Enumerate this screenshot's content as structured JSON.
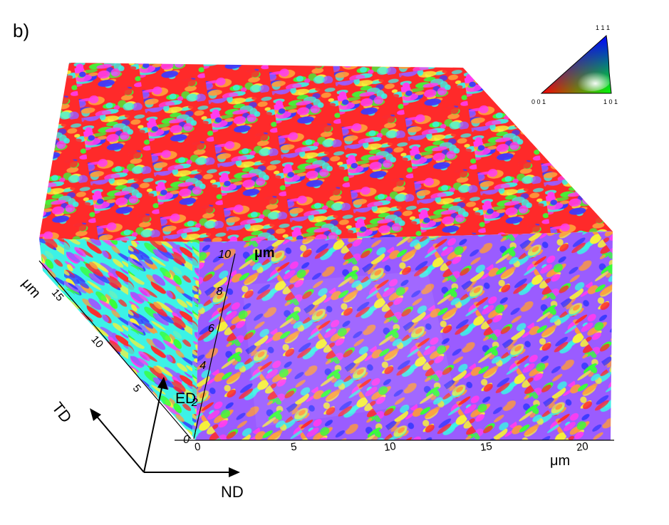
{
  "panel_label": "b)",
  "ipf_key": {
    "corner_111": "1 1 1",
    "corner_001": "0 0 1",
    "corner_101": "1 0 1"
  },
  "axes": {
    "vertical": {
      "unit": "μm",
      "ticks": [
        "0",
        "2",
        "4",
        "6",
        "8",
        "10"
      ]
    },
    "horizontal": {
      "unit": "μm",
      "ticks": [
        "0",
        "5",
        "10",
        "15",
        "20"
      ]
    },
    "depth": {
      "unit": "μm",
      "ticks": [
        "5",
        "10",
        "15"
      ]
    }
  },
  "direction_triad": {
    "td": "TD",
    "ed": "ED",
    "nd": "ND"
  },
  "colors": {
    "ipf_red": "#ff2a2a",
    "ipf_green": "#38ff38",
    "ipf_blue": "#3a3aff",
    "ipf_cyan": "#3cf2e6",
    "ipf_magenta": "#ff3cf0",
    "ipf_yellow": "#f6f03a",
    "ipf_purple": "#9a5cff",
    "ipf_orange": "#ff9c3a"
  }
}
